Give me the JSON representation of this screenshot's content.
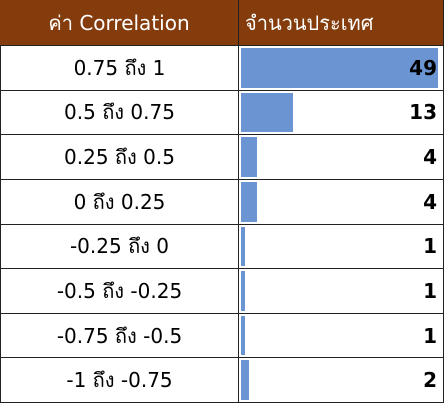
{
  "table": {
    "header": [
      "ค่า Correlation",
      "จำนวนประเทศ"
    ],
    "rows": [
      [
        "0.75 ถึง 1",
        49
      ],
      [
        "0.5 ถึง 0.75",
        13
      ],
      [
        "0.25 ถึง 0.5",
        4
      ],
      [
        "0 ถึง 0.25",
        4
      ],
      [
        "-0.25 ถึง 0",
        1
      ],
      [
        "-0.5 ถึง -0.25",
        1
      ],
      [
        "-0.75 ถึง -0.5",
        1
      ],
      [
        "-1 ถึง -0.75",
        2
      ]
    ]
  }
}
